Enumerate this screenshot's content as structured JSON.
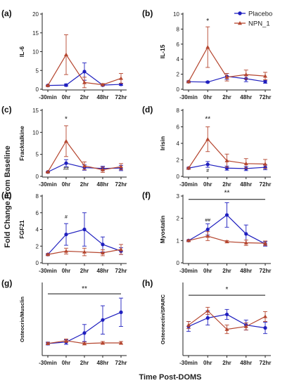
{
  "figure": {
    "y_axis_label": "Fold Change From Baseline",
    "x_axis_label": "Time Post-DOMS",
    "legend": [
      {
        "name": "Placebo",
        "color": "#1f1fbf",
        "marker": "circle"
      },
      {
        "name": "NPN_1",
        "color": "#b5462f",
        "marker": "triangle"
      }
    ]
  },
  "chart_data": [
    {
      "type": "line",
      "panel": "(a)",
      "ylabel": "IL-6",
      "categories": [
        "-30min",
        "0hr",
        "2hr",
        "48hr",
        "72hr"
      ],
      "ylim": [
        0,
        20
      ],
      "yticks": [
        0,
        5,
        10,
        15,
        20
      ],
      "series": [
        {
          "name": "Placebo",
          "values": [
            1.0,
            1.1,
            4.7,
            1.1,
            1.3
          ],
          "err": [
            0.1,
            0.3,
            2.3,
            0.2,
            0.3
          ]
        },
        {
          "name": "NPN_1",
          "values": [
            1.0,
            9.2,
            1.8,
            1.2,
            2.9
          ],
          "err": [
            0.1,
            5.3,
            1.4,
            0.3,
            1.3
          ]
        }
      ],
      "annotations": []
    },
    {
      "type": "line",
      "panel": "(b)",
      "ylabel": "IL-15",
      "categories": [
        "-30min",
        "0hr",
        "2hr",
        "48hr",
        "72hr"
      ],
      "ylim": [
        0,
        10
      ],
      "yticks": [
        0,
        2,
        4,
        6,
        8,
        10
      ],
      "series": [
        {
          "name": "Placebo",
          "values": [
            1.0,
            0.95,
            1.7,
            1.4,
            1.0
          ],
          "err": [
            0.1,
            0.1,
            0.4,
            0.4,
            0.2
          ]
        },
        {
          "name": "NPN_1",
          "values": [
            1.0,
            5.6,
            1.6,
            1.95,
            1.75
          ],
          "err": [
            0.1,
            2.7,
            0.5,
            0.6,
            0.5
          ]
        }
      ],
      "annotations": [
        {
          "text": "*",
          "x": "0hr",
          "y": 8.8
        }
      ]
    },
    {
      "type": "line",
      "panel": "(c)",
      "ylabel": "Fracktalkine",
      "categories": [
        "-30min",
        "0hr",
        "2hr",
        "48hr",
        "72hr"
      ],
      "ylim": [
        0,
        15
      ],
      "yticks": [
        0,
        5,
        10,
        15
      ],
      "series": [
        {
          "name": "Placebo",
          "values": [
            1.0,
            3.0,
            2.0,
            1.8,
            1.9
          ],
          "err": [
            0.1,
            0.8,
            0.6,
            0.5,
            0.6
          ]
        },
        {
          "name": "NPN_1",
          "values": [
            1.0,
            8.0,
            2.4,
            1.5,
            2.2
          ],
          "err": [
            0.1,
            3.5,
            0.9,
            0.6,
            0.7
          ]
        }
      ],
      "annotations": [
        {
          "text": "*",
          "x": "0hr",
          "y": 12.5
        },
        {
          "text": "##",
          "x": "0hr",
          "y": 1.4
        }
      ]
    },
    {
      "type": "line",
      "panel": "(d)",
      "ylabel": "Irisin",
      "categories": [
        "-30min",
        "0hr",
        "2hr",
        "48hr",
        "72hr"
      ],
      "ylim": [
        0,
        8
      ],
      "yticks": [
        0,
        2,
        4,
        6,
        8
      ],
      "series": [
        {
          "name": "Placebo",
          "values": [
            1.0,
            1.45,
            1.0,
            0.95,
            1.1
          ],
          "err": [
            0.1,
            0.35,
            0.25,
            0.25,
            0.3
          ]
        },
        {
          "name": "NPN_1",
          "values": [
            1.0,
            4.5,
            1.9,
            1.55,
            1.5
          ],
          "err": [
            0.1,
            1.5,
            0.8,
            0.6,
            0.55
          ]
        }
      ],
      "annotations": [
        {
          "text": "**",
          "x": "0hr",
          "y": 6.7
        },
        {
          "text": "#",
          "x": "0hr",
          "y": 0.5
        }
      ]
    },
    {
      "type": "line",
      "panel": "(e)",
      "ylabel": "FGF21",
      "categories": [
        "-30min",
        "0hr",
        "2hr",
        "48hr",
        "72hr"
      ],
      "ylim": [
        0,
        8
      ],
      "yticks": [
        0,
        2,
        4,
        6,
        8
      ],
      "series": [
        {
          "name": "Placebo",
          "values": [
            1.0,
            3.4,
            4.0,
            2.2,
            1.4
          ],
          "err": [
            0.1,
            1.3,
            2.0,
            0.9,
            0.4
          ]
        },
        {
          "name": "NPN_1",
          "values": [
            1.0,
            1.4,
            1.3,
            1.2,
            1.6
          ],
          "err": [
            0.1,
            0.35,
            0.45,
            0.35,
            0.6
          ]
        }
      ],
      "annotations": [
        {
          "text": "#",
          "x": "0hr",
          "y": 5.3
        }
      ]
    },
    {
      "type": "line",
      "panel": "(f)",
      "ylabel": "Myostatin",
      "categories": [
        "-30min",
        "0hr",
        "2hr",
        "48hr",
        "72hr"
      ],
      "ylim": [
        0,
        3
      ],
      "yticks": [
        0,
        1,
        2,
        3
      ],
      "series": [
        {
          "name": "Placebo",
          "values": [
            1.0,
            1.5,
            2.15,
            1.3,
            0.85
          ],
          "err": [
            0.03,
            0.25,
            0.55,
            0.4,
            0.1
          ]
        },
        {
          "name": "NPN_1",
          "values": [
            1.0,
            1.2,
            0.95,
            0.9,
            0.88
          ],
          "err": [
            0.03,
            0.2,
            0.05,
            0.12,
            0.1
          ]
        }
      ],
      "annotations": [
        {
          "text": "**",
          "x": "2hr",
          "y": 3.05
        },
        {
          "text": "##",
          "x": "0hr",
          "y": 1.85
        }
      ],
      "bracket": {
        "from": "-30min",
        "to": "72hr",
        "y": 2.85
      }
    },
    {
      "type": "line",
      "panel": "(g)",
      "ylabel": "Osteocrin/Musclin",
      "categories": [
        "-30min",
        "0hr",
        "2hr",
        "48hr",
        "72hr"
      ],
      "ylim": [
        0.5,
        3.0
      ],
      "yticks": [],
      "series": [
        {
          "name": "Placebo",
          "values": [
            0.9,
            0.95,
            1.27,
            1.73,
            2.0
          ],
          "err": [
            0.05,
            0.08,
            0.3,
            0.5,
            0.5
          ]
        },
        {
          "name": "NPN_1",
          "values": [
            0.9,
            1.0,
            0.9,
            0.92,
            0.92
          ],
          "err": [
            0.04,
            0.06,
            0.05,
            0.05,
            0.05
          ]
        }
      ],
      "annotations": [
        {
          "text": "**",
          "x": "2hr",
          "y": 2.75
        }
      ],
      "bracket": {
        "from": "-30min",
        "to": "72hr",
        "y": 2.65
      }
    },
    {
      "type": "line",
      "panel": "(h)",
      "ylabel": "Osteonectin/SPARC",
      "categories": [
        "-30min",
        "0hr",
        "2hr",
        "48hr",
        "72hr"
      ],
      "ylim": [
        0.5,
        1.5
      ],
      "yticks": [],
      "series": [
        {
          "name": "Placebo",
          "values": [
            0.9,
            1.02,
            1.07,
            0.92,
            0.88
          ],
          "err": [
            0.07,
            0.1,
            0.07,
            0.07,
            0.08
          ]
        },
        {
          "name": "NPN_1",
          "values": [
            0.92,
            1.12,
            0.86,
            0.9,
            1.04
          ],
          "err": [
            0.05,
            0.05,
            0.06,
            0.05,
            0.07
          ]
        }
      ],
      "annotations": [
        {
          "text": "*",
          "x": "2hr",
          "y": 1.39
        }
      ],
      "bracket": {
        "from": "-30min",
        "to": "72hr",
        "y": 1.34
      }
    }
  ]
}
